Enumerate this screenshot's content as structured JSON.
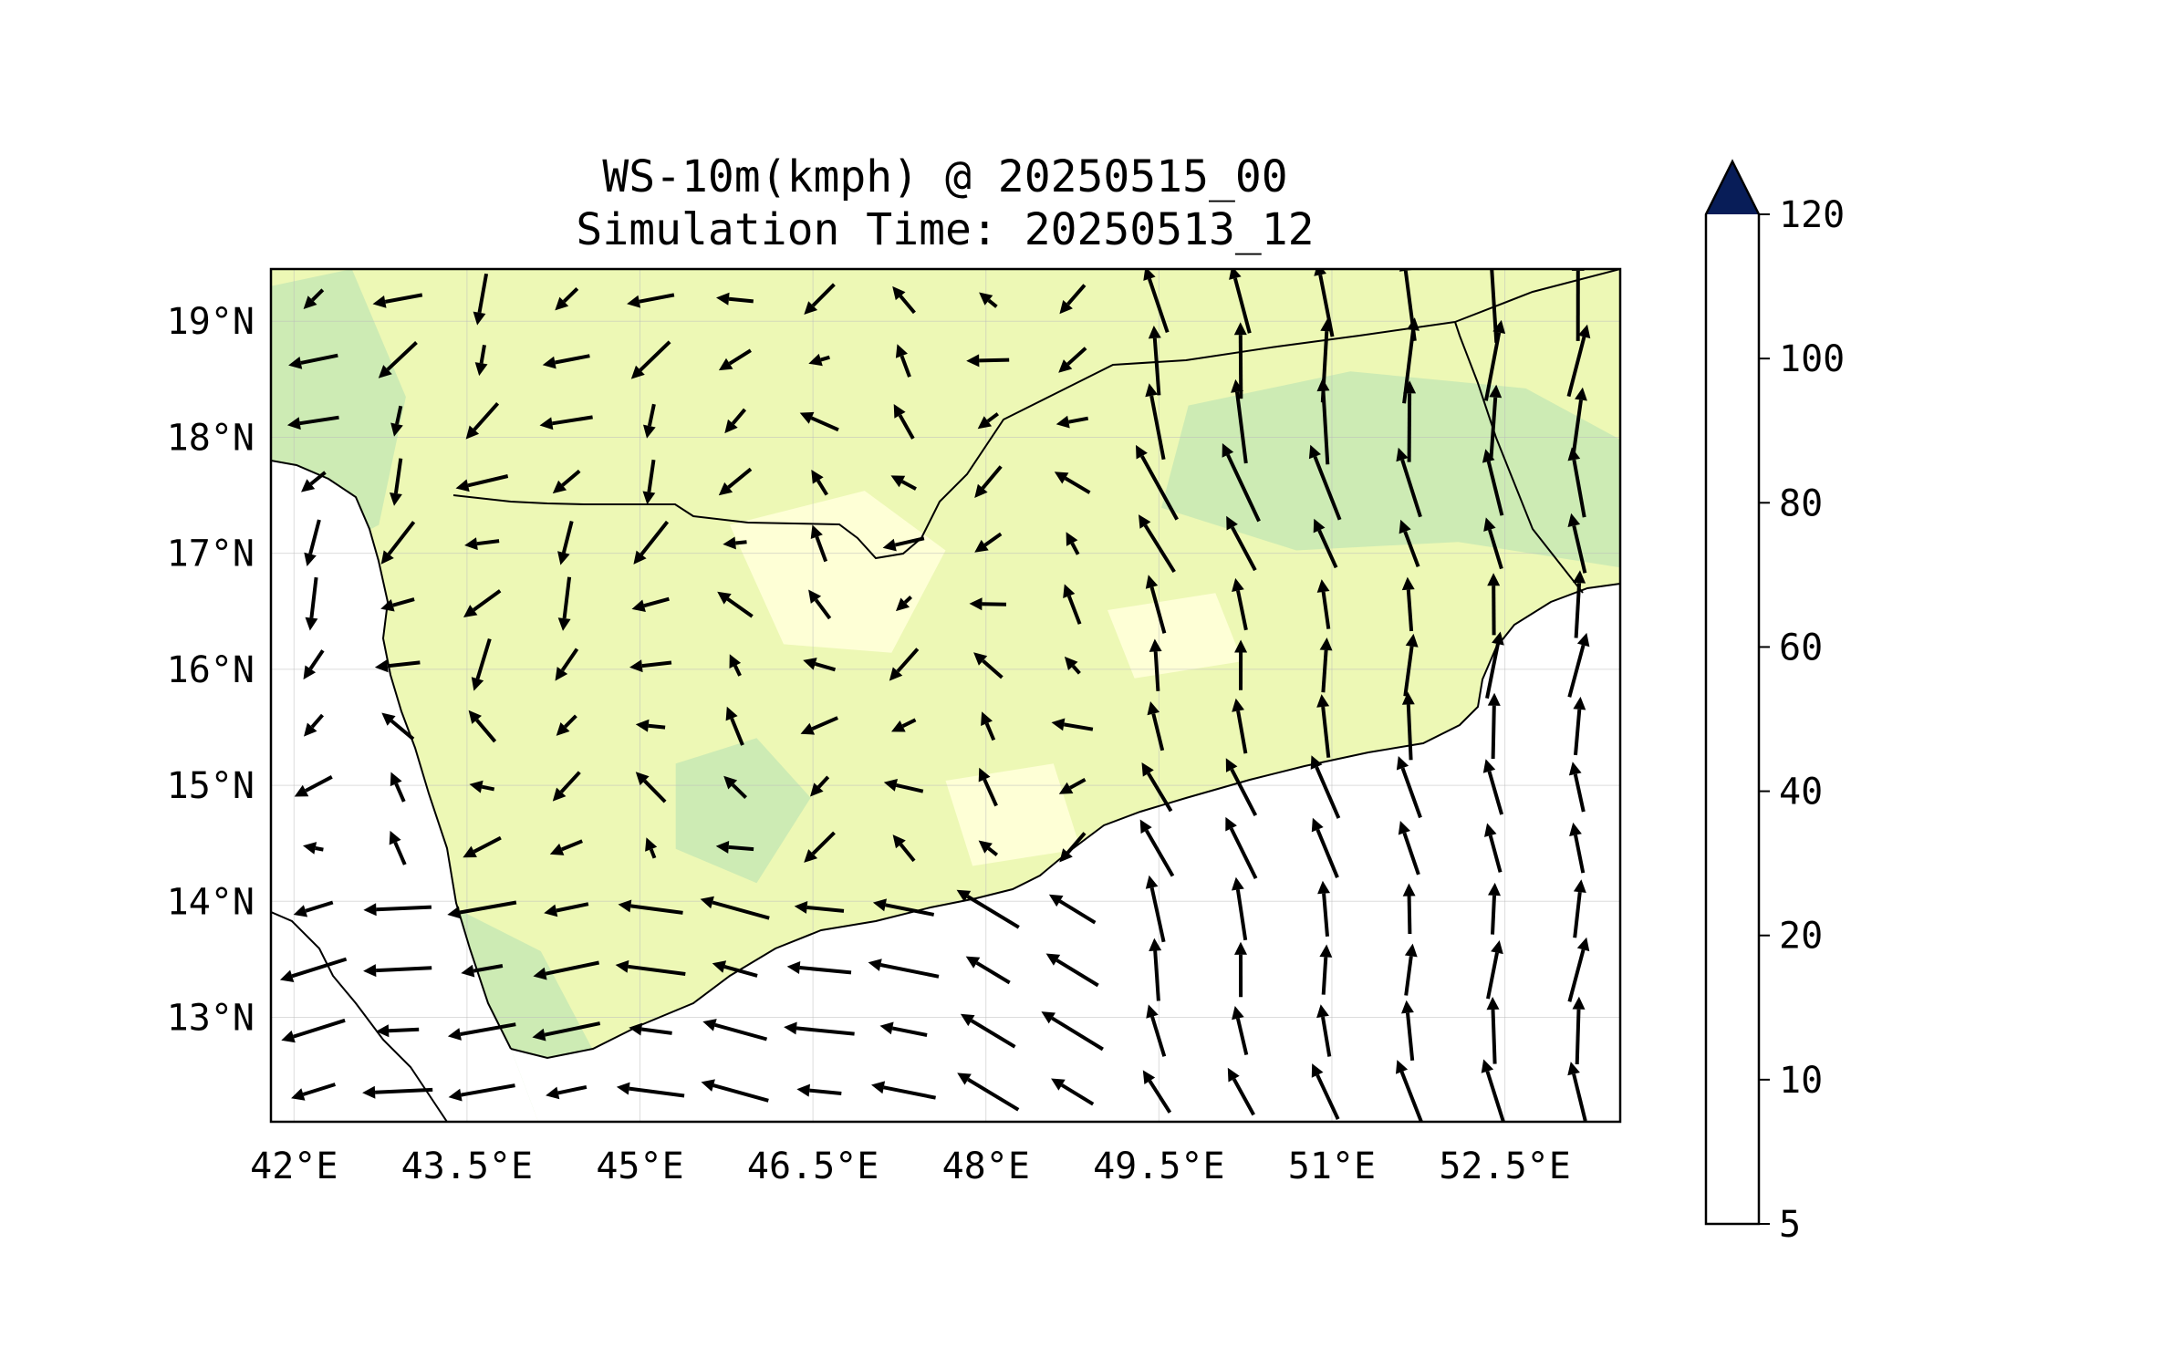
{
  "title_line1": "WS-10m(kmph) @ 20250515_00",
  "title_line2": "Simulation Time: 20250513_12",
  "map": {
    "lon_range": [
      41.8,
      53.5
    ],
    "lat_range": [
      12.1,
      19.45
    ],
    "lon_ticks": [
      "42°E",
      "43.5°E",
      "45°E",
      "46.5°E",
      "48°E",
      "49.5°E",
      "51°E",
      "52.5°E"
    ],
    "lat_ticks": [
      "19°N",
      "18°N",
      "17°N",
      "16°N",
      "15°N",
      "14°N",
      "13°N"
    ],
    "gridlines": true,
    "land_fill": "#edf8b5",
    "water_fill": "#ffffff",
    "vector_color": "#000000"
  },
  "colorbar": {
    "levels": [
      "5",
      "10",
      "20",
      "40",
      "60",
      "80",
      "100",
      "120"
    ],
    "colors": [
      "#ffffd9",
      "#edf8b1",
      "#c7e9b4",
      "#7fcdbb",
      "#41b6c4",
      "#1d91c0",
      "#253494",
      "#081d58"
    ],
    "extend": "max"
  }
}
